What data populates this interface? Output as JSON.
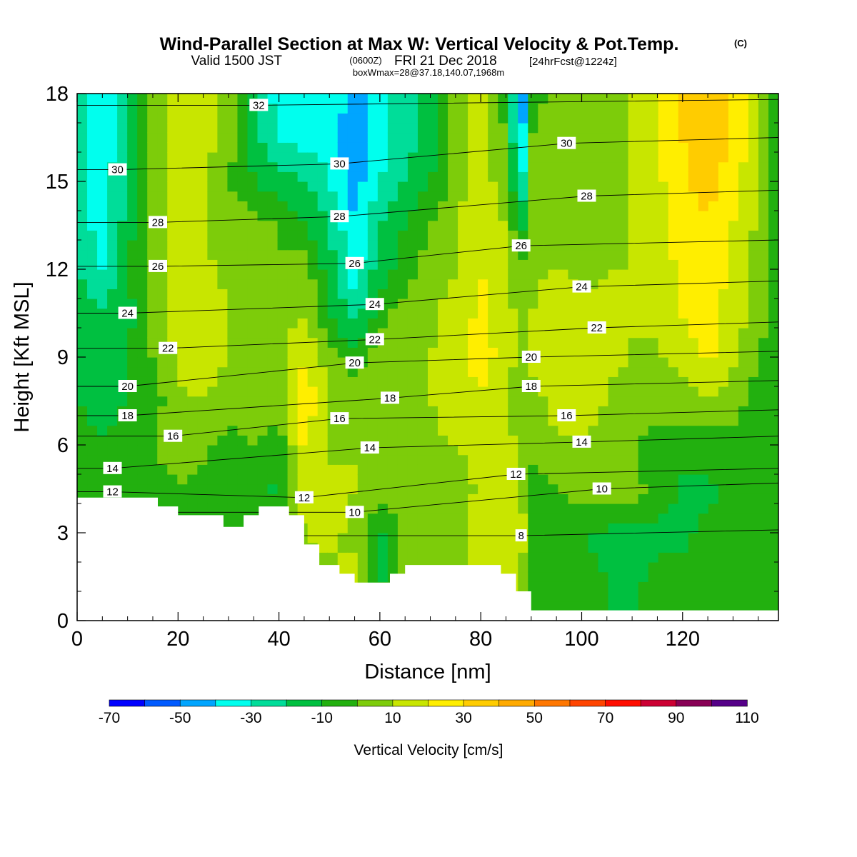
{
  "title": {
    "main": "Wind-Parallel Section at Max W: Vertical Velocity & Pot.Temp.",
    "copyright": "(C)",
    "valid_prefix": "Valid 1500 JST",
    "valid_z": "(0600Z)",
    "valid_date": "FRI 21 Dec 2018",
    "forecast": "[24hrFcst@1224z]",
    "boxwmax": "boxWmax=28@37.18,140.07,1968m"
  },
  "chart_data": {
    "type": "heatmap",
    "xlabel": "Distance [nm]",
    "ylabel": "Height [Kft MSL]",
    "xlim": [
      0,
      139
    ],
    "ylim": [
      0,
      18
    ],
    "x_ticks": [
      "0",
      "20",
      "40",
      "60",
      "80",
      "100",
      "120"
    ],
    "y_ticks": [
      "0",
      "3",
      "6",
      "9",
      "12",
      "15",
      "18"
    ],
    "x_tick_values": [
      0,
      20,
      40,
      60,
      80,
      100,
      120
    ],
    "y_tick_values": [
      0,
      3,
      6,
      9,
      12,
      15,
      18
    ],
    "colorbar": {
      "label": "Vertical Velocity [cm/s]",
      "bounds": [
        -70,
        -60,
        -50,
        -40,
        -30,
        -20,
        -10,
        0,
        10,
        20,
        30,
        40,
        50,
        60,
        70,
        80,
        90,
        100,
        110
      ],
      "tick_labels": [
        "-70",
        "-50",
        "-30",
        "-10",
        "10",
        "30",
        "50",
        "70",
        "90",
        "110"
      ],
      "tick_values": [
        -70,
        -50,
        -30,
        -10,
        10,
        30,
        50,
        70,
        90,
        110
      ],
      "colors": [
        "#0000ff",
        "#005aff",
        "#00a5ff",
        "#00ffee",
        "#00dd99",
        "#00c040",
        "#22b00f",
        "#7dcc0a",
        "#c8e600",
        "#ffee00",
        "#ffcc00",
        "#ffaa00",
        "#ff7700",
        "#ff4400",
        "#ff0d00",
        "#cc0033",
        "#880055",
        "#550088"
      ]
    },
    "terrain": [
      [
        0,
        4.2
      ],
      [
        16,
        4.2
      ],
      [
        16,
        3.9
      ],
      [
        20,
        3.9
      ],
      [
        20,
        3.6
      ],
      [
        29,
        3.6
      ],
      [
        29,
        3.2
      ],
      [
        33,
        3.2
      ],
      [
        33,
        3.6
      ],
      [
        36,
        3.6
      ],
      [
        36,
        3.9
      ],
      [
        42,
        3.9
      ],
      [
        42,
        3.6
      ],
      [
        45,
        3.6
      ],
      [
        45,
        2.6
      ],
      [
        48,
        2.6
      ],
      [
        48,
        1.9
      ],
      [
        52,
        1.9
      ],
      [
        52,
        1.6
      ],
      [
        55,
        1.6
      ],
      [
        55,
        1.3
      ],
      [
        62,
        1.3
      ],
      [
        62,
        1.6
      ],
      [
        65,
        1.6
      ],
      [
        65,
        1.9
      ],
      [
        84,
        1.9
      ],
      [
        84,
        1.6
      ],
      [
        87,
        1.6
      ],
      [
        87,
        1.0
      ],
      [
        90,
        1.0
      ],
      [
        90,
        0.35
      ],
      [
        139,
        0.35
      ]
    ],
    "velocity_grid": {
      "x": [
        0,
        5,
        10,
        15,
        20,
        25,
        30,
        35,
        40,
        45,
        50,
        55,
        60,
        65,
        70,
        75,
        80,
        85,
        88,
        90,
        95,
        100,
        105,
        110,
        115,
        120,
        125,
        130,
        135,
        139
      ],
      "y": [
        0,
        1.5,
        3,
        4.5,
        6,
        7.5,
        9,
        10.5,
        12,
        13.5,
        15,
        16.5,
        18
      ],
      "w": [
        [
          -5,
          -5,
          -5,
          -5,
          -5,
          -5,
          -5,
          -5,
          -5,
          -5,
          -5,
          5,
          5,
          5,
          5,
          5,
          12,
          15,
          8,
          -5,
          -5,
          -5,
          -10,
          -10,
          -5,
          -5,
          -5,
          -5,
          -5,
          -5
        ],
        [
          -5,
          -5,
          -5,
          -5,
          -5,
          -5,
          -5,
          -5,
          -5,
          5,
          8,
          12,
          -12,
          5,
          5,
          5,
          12,
          18,
          12,
          -5,
          -5,
          -8,
          -10,
          -12,
          -8,
          -8,
          -5,
          -5,
          -5,
          -5
        ],
        [
          -5,
          -5,
          -5,
          -5,
          -5,
          -5,
          -5,
          -5,
          -5,
          10,
          12,
          8,
          -12,
          5,
          5,
          5,
          15,
          20,
          15,
          -5,
          -5,
          -10,
          -12,
          -15,
          -12,
          -12,
          -8,
          -5,
          -5,
          -5
        ],
        [
          -5,
          -5,
          -5,
          -5,
          0,
          -3,
          -5,
          -8,
          -12,
          18,
          12,
          10,
          8,
          5,
          5,
          5,
          12,
          18,
          12,
          -5,
          0,
          5,
          5,
          5,
          -5,
          -12,
          -12,
          -8,
          -5,
          -5
        ],
        [
          -5,
          -8,
          -5,
          0,
          5,
          3,
          -5,
          0,
          -5,
          22,
          8,
          10,
          10,
          8,
          8,
          10,
          15,
          12,
          8,
          5,
          8,
          8,
          5,
          0,
          -5,
          -5,
          -5,
          -5,
          -5,
          -5
        ],
        [
          -10,
          -15,
          -10,
          -5,
          8,
          10,
          5,
          5,
          5,
          28,
          10,
          8,
          5,
          8,
          10,
          15,
          18,
          12,
          5,
          5,
          15,
          15,
          10,
          5,
          5,
          5,
          10,
          5,
          -5,
          -5
        ],
        [
          -15,
          -18,
          -10,
          0,
          12,
          15,
          10,
          5,
          5,
          20,
          5,
          -5,
          5,
          8,
          10,
          15,
          25,
          15,
          5,
          12,
          18,
          15,
          12,
          10,
          8,
          15,
          22,
          12,
          0,
          -5
        ],
        [
          -15,
          -20,
          -15,
          5,
          15,
          15,
          10,
          5,
          5,
          10,
          -10,
          -25,
          -5,
          5,
          8,
          15,
          22,
          15,
          5,
          10,
          15,
          12,
          12,
          10,
          12,
          20,
          25,
          15,
          5,
          -5
        ],
        [
          -20,
          -30,
          -10,
          5,
          15,
          12,
          8,
          5,
          0,
          5,
          -15,
          -35,
          -15,
          -5,
          5,
          10,
          20,
          15,
          0,
          8,
          10,
          8,
          10,
          10,
          15,
          22,
          25,
          18,
          5,
          -5
        ],
        [
          -25,
          -35,
          -15,
          5,
          15,
          10,
          5,
          5,
          0,
          -10,
          -20,
          -40,
          -20,
          -10,
          0,
          10,
          18,
          10,
          -15,
          5,
          5,
          5,
          8,
          10,
          15,
          25,
          28,
          20,
          8,
          -5
        ],
        [
          -25,
          -35,
          -20,
          5,
          15,
          10,
          0,
          -10,
          -15,
          -20,
          -30,
          -45,
          -30,
          -20,
          -10,
          5,
          15,
          5,
          -35,
          5,
          5,
          5,
          5,
          10,
          18,
          28,
          35,
          25,
          10,
          -5
        ],
        [
          -25,
          -35,
          -25,
          5,
          15,
          15,
          5,
          -15,
          -30,
          -35,
          -35,
          -50,
          -35,
          -25,
          -15,
          5,
          15,
          0,
          -45,
          0,
          5,
          5,
          5,
          10,
          20,
          30,
          38,
          28,
          12,
          -5
        ],
        [
          -25,
          -35,
          -25,
          5,
          15,
          15,
          5,
          -20,
          -35,
          -35,
          -30,
          -45,
          -35,
          -25,
          -15,
          5,
          15,
          -5,
          -55,
          -5,
          5,
          5,
          5,
          10,
          20,
          30,
          38,
          28,
          10,
          -5
        ]
      ]
    },
    "theta_contours": [
      {
        "label": "8",
        "level": 8,
        "lx": 88,
        "ly": 2.9
      },
      {
        "label": "10",
        "level": 10,
        "lx": 55,
        "ly": 3.7
      },
      {
        "label": "10",
        "level": 10,
        "lx": 104,
        "ly": 4.5
      },
      {
        "label": "12",
        "level": 12,
        "lx": 7,
        "ly": 4.4
      },
      {
        "label": "12",
        "level": 12,
        "lx": 45,
        "ly": 4.2
      },
      {
        "label": "12",
        "level": 12,
        "lx": 87,
        "ly": 5.0
      },
      {
        "label": "14",
        "level": 14,
        "lx": 7,
        "ly": 5.2
      },
      {
        "label": "14",
        "level": 14,
        "lx": 58,
        "ly": 5.9
      },
      {
        "label": "14",
        "level": 14,
        "lx": 100,
        "ly": 6.1
      },
      {
        "label": "16",
        "level": 16,
        "lx": 19,
        "ly": 6.3
      },
      {
        "label": "16",
        "level": 16,
        "lx": 52,
        "ly": 6.9
      },
      {
        "label": "16",
        "level": 16,
        "lx": 97,
        "ly": 7.0
      },
      {
        "label": "18",
        "level": 18,
        "lx": 10,
        "ly": 7.0
      },
      {
        "label": "18",
        "level": 18,
        "lx": 62,
        "ly": 7.6
      },
      {
        "label": "18",
        "level": 18,
        "lx": 90,
        "ly": 8.0
      },
      {
        "label": "20",
        "level": 20,
        "lx": 10,
        "ly": 8.0
      },
      {
        "label": "20",
        "level": 20,
        "lx": 55,
        "ly": 8.8
      },
      {
        "label": "20",
        "level": 20,
        "lx": 90,
        "ly": 9.0
      },
      {
        "label": "22",
        "level": 22,
        "lx": 18,
        "ly": 9.3
      },
      {
        "label": "22",
        "level": 22,
        "lx": 59,
        "ly": 9.6
      },
      {
        "label": "22",
        "level": 22,
        "lx": 103,
        "ly": 10.0
      },
      {
        "label": "24",
        "level": 24,
        "lx": 10,
        "ly": 10.5
      },
      {
        "label": "24",
        "level": 24,
        "lx": 59,
        "ly": 10.8
      },
      {
        "label": "24",
        "level": 24,
        "lx": 100,
        "ly": 11.4
      },
      {
        "label": "26",
        "level": 26,
        "lx": 16,
        "ly": 12.1
      },
      {
        "label": "26",
        "level": 26,
        "lx": 55,
        "ly": 12.2
      },
      {
        "label": "26",
        "level": 26,
        "lx": 88,
        "ly": 12.8
      },
      {
        "label": "28",
        "level": 28,
        "lx": 16,
        "ly": 13.6
      },
      {
        "label": "28",
        "level": 28,
        "lx": 52,
        "ly": 13.8
      },
      {
        "label": "28",
        "level": 28,
        "lx": 101,
        "ly": 14.5
      },
      {
        "label": "30",
        "level": 30,
        "lx": 8,
        "ly": 15.4
      },
      {
        "label": "30",
        "level": 30,
        "lx": 52,
        "ly": 15.6
      },
      {
        "label": "30",
        "level": 30,
        "lx": 97,
        "ly": 16.3
      },
      {
        "label": "32",
        "level": 32,
        "lx": 36,
        "ly": 17.6
      }
    ]
  }
}
